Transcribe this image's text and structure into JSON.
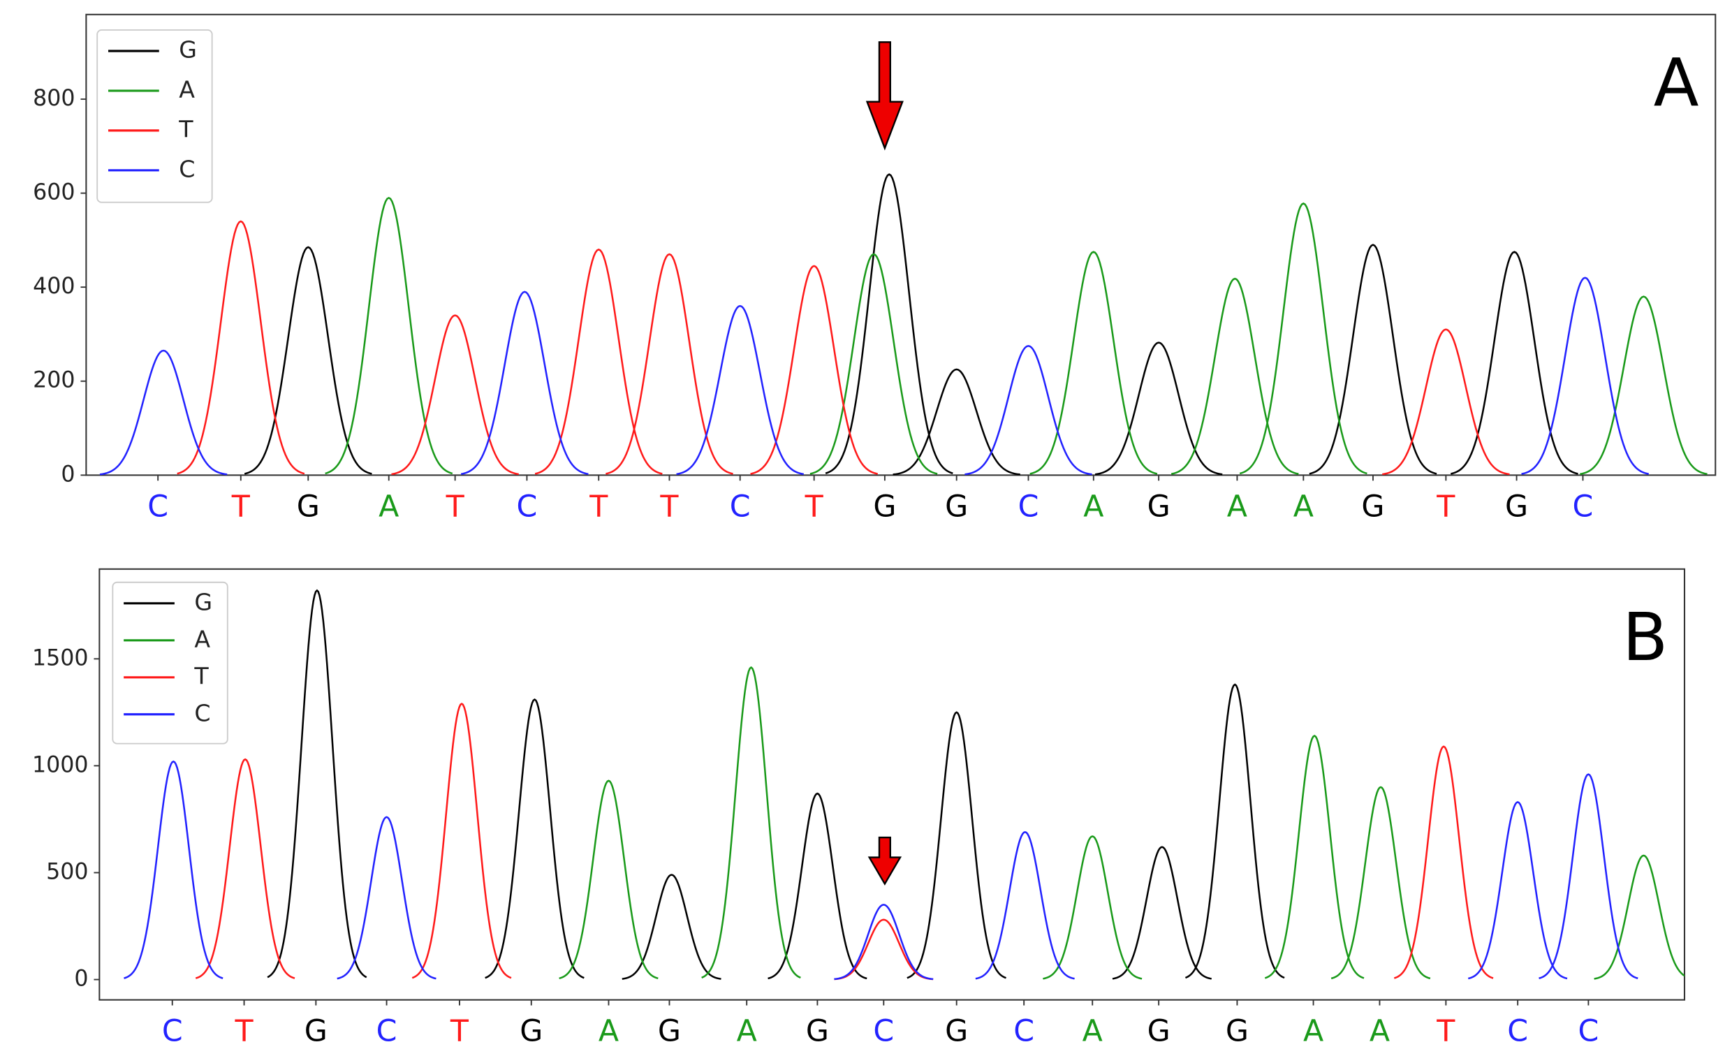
{
  "chart_data": [
    {
      "type": "chromatogram",
      "label": "A",
      "xlim": [
        0,
        1475
      ],
      "ylim": [
        0,
        980
      ],
      "yticks": [
        0,
        200,
        400,
        600,
        800
      ],
      "xticks": [
        {
          "value": 65,
          "label": "C"
        },
        {
          "value": 140,
          "label": "T"
        },
        {
          "value": 201,
          "label": "G"
        },
        {
          "value": 274,
          "label": "A"
        },
        {
          "value": 334,
          "label": "T"
        },
        {
          "value": 399,
          "label": "C"
        },
        {
          "value": 464,
          "label": "T"
        },
        {
          "value": 528,
          "label": "T"
        },
        {
          "value": 592,
          "label": "C"
        },
        {
          "value": 659,
          "label": "T"
        },
        {
          "value": 723,
          "label": "G"
        },
        {
          "value": 788,
          "label": "G"
        },
        {
          "value": 853,
          "label": "C"
        },
        {
          "value": 912,
          "label": "A"
        },
        {
          "value": 971,
          "label": "G"
        },
        {
          "value": 1042,
          "label": "A"
        },
        {
          "value": 1102,
          "label": "A"
        },
        {
          "value": 1165,
          "label": "G"
        },
        {
          "value": 1231,
          "label": "T"
        },
        {
          "value": 1295,
          "label": "G"
        },
        {
          "value": 1355,
          "label": "C"
        }
      ],
      "series": [
        {
          "name": "G",
          "color": "#000000",
          "x": [
            201,
            727,
            788,
            971,
            1165,
            1293
          ],
          "values": [
            485,
            640,
            225,
            282,
            490,
            475
          ]
        },
        {
          "name": "A",
          "color": "#1a9a1a",
          "x": [
            274,
            713,
            912,
            1040,
            1102,
            1410
          ],
          "values": [
            590,
            470,
            475,
            418,
            578,
            380
          ]
        },
        {
          "name": "T",
          "color": "#ff1a1a",
          "x": [
            140,
            334,
            464,
            528,
            659,
            1231
          ],
          "values": [
            540,
            340,
            480,
            470,
            445,
            310
          ]
        },
        {
          "name": "C",
          "color": "#2222ff",
          "x": [
            70,
            397,
            592,
            853,
            1357
          ],
          "values": [
            265,
            390,
            360,
            275,
            420
          ]
        }
      ]
    },
    {
      "type": "chromatogram",
      "label": "B",
      "xlim": [
        0,
        1435
      ],
      "ylim": [
        -95,
        1920
      ],
      "yticks": [
        0,
        500,
        1000,
        1500
      ],
      "xticks": [
        {
          "value": 66,
          "label": "C"
        },
        {
          "value": 131,
          "label": "T"
        },
        {
          "value": 196,
          "label": "G"
        },
        {
          "value": 260,
          "label": "C"
        },
        {
          "value": 326,
          "label": "T"
        },
        {
          "value": 391,
          "label": "G"
        },
        {
          "value": 461,
          "label": "A"
        },
        {
          "value": 516,
          "label": "G"
        },
        {
          "value": 586,
          "label": "A"
        },
        {
          "value": 650,
          "label": "G"
        },
        {
          "value": 710,
          "label": "C"
        },
        {
          "value": 776,
          "label": "G"
        },
        {
          "value": 837,
          "label": "C"
        },
        {
          "value": 899,
          "label": "A"
        },
        {
          "value": 959,
          "label": "G"
        },
        {
          "value": 1030,
          "label": "G"
        },
        {
          "value": 1099,
          "label": "A"
        },
        {
          "value": 1159,
          "label": "A"
        },
        {
          "value": 1219,
          "label": "T"
        },
        {
          "value": 1284,
          "label": "C"
        },
        {
          "value": 1348,
          "label": "C"
        }
      ],
      "series": [
        {
          "name": "G",
          "color": "#000000",
          "x": [
            197,
            394,
            518,
            650,
            776,
            962,
            1028
          ],
          "values": [
            1820,
            1310,
            490,
            870,
            1250,
            620,
            1380
          ]
        },
        {
          "name": "A",
          "color": "#1a9a1a",
          "x": [
            461,
            590,
            899,
            1100,
            1160,
            1398
          ],
          "values": [
            930,
            1460,
            670,
            1140,
            900,
            580
          ]
        },
        {
          "name": "T",
          "color": "#ff1a1a",
          "x": [
            132,
            328,
            710,
            1217
          ],
          "values": [
            1030,
            1290,
            280,
            1090
          ]
        },
        {
          "name": "C",
          "color": "#2222ff",
          "x": [
            67,
            260,
            710,
            838,
            1284,
            1348
          ],
          "values": [
            1020,
            760,
            350,
            690,
            830,
            960
          ]
        }
      ]
    }
  ]
}
